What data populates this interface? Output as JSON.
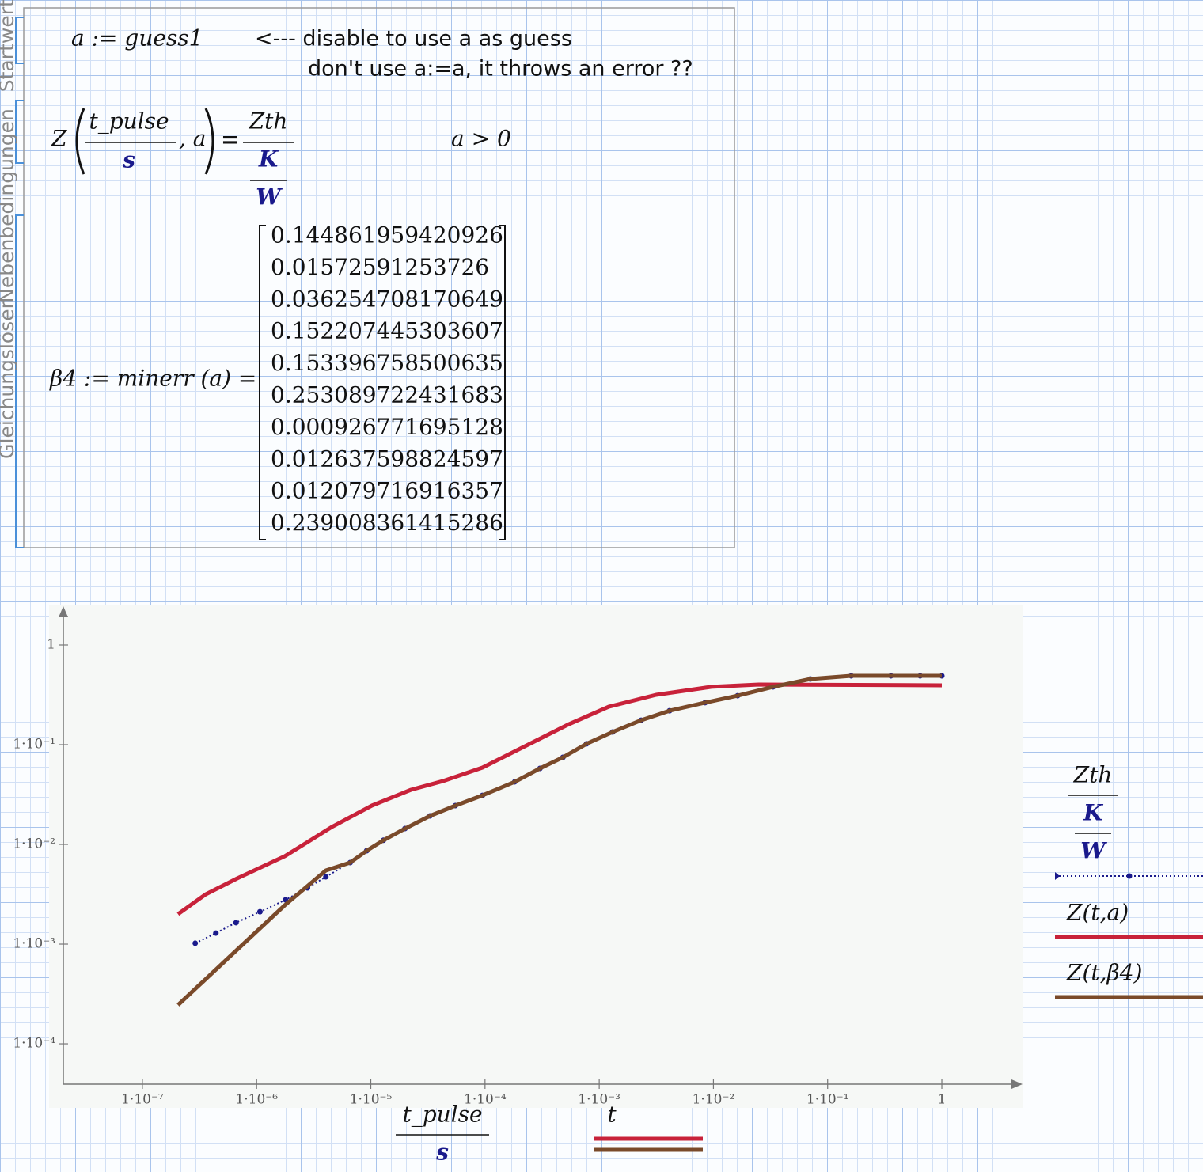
{
  "solve_block": {
    "labels": [
      "Startwerte",
      "Nebenbedingungen",
      "Gleichungslöser"
    ],
    "guess": "a := guess1",
    "comment": [
      "<--- disable to use a as guess",
      "don't use a:=a, it throws an error ??"
    ],
    "equation": {
      "function": "Z",
      "argument_numerator": "t_pulse",
      "argument_denominator": "s",
      "parameter": ", a",
      "equals": "=",
      "rhs_numerator": "Zth",
      "rhs_unit_numerator": "K",
      "rhs_unit_denominator": "W"
    },
    "constraint": "a > 0",
    "result": {
      "lhs": "β4 := minerr (a) =",
      "values": [
        0.144861959420926,
        0.01572591253726,
        0.036254708170649,
        0.152207445303607,
        0.153396758500635,
        0.253089722431683,
        0.000926771695128,
        0.012637598824597,
        0.012079716916357,
        0.239008361415286
      ]
    }
  },
  "chart_data": {
    "type": "line",
    "xscale": "log",
    "yscale": "log",
    "xlim": [
      2.03e-08,
      4.93
    ],
    "ylim": [
      3.94e-05,
      2.36
    ],
    "xticks": [
      {
        "value": 1e-07,
        "label": "1·10⁻⁷"
      },
      {
        "value": 1e-06,
        "label": "1·10⁻⁶"
      },
      {
        "value": 1e-05,
        "label": "1·10⁻⁵"
      },
      {
        "value": 0.0001,
        "label": "1·10⁻⁴"
      },
      {
        "value": 0.001,
        "label": "1·10⁻³"
      },
      {
        "value": 0.01,
        "label": "1·10⁻²"
      },
      {
        "value": 0.1,
        "label": "1·10⁻¹"
      },
      1
    ],
    "yticks": [
      {
        "value": 0.0001,
        "label": "1·10⁻⁴"
      },
      {
        "value": 0.001,
        "label": "1·10⁻³"
      },
      {
        "value": 0.01,
        "label": "1·10⁻²"
      },
      {
        "value": 0.1,
        "label": "1·10⁻¹"
      },
      1
    ],
    "xlabel": {
      "numerator": "t_pulse",
      "denominator": "s"
    },
    "xlabel2": "t",
    "ylabel": {
      "numerator": "Zth",
      "unit_numerator": "K",
      "unit_denominator": "W"
    },
    "series": [
      {
        "color": "#1a1a8c",
        "style": "dotted-markers",
        "x": [
          2.9e-07,
          4.4e-07,
          6.6e-07,
          1.07e-06,
          1.79e-06,
          2.79e-06,
          4.04e-06,
          6.6e-06,
          9.2e-06,
          1.29e-05,
          1.99e-05,
          3.3e-05,
          5.5e-05,
          9.5e-05,
          0.000182,
          0.000303,
          0.000481,
          0.000774,
          0.00131,
          0.00233,
          0.00413,
          0.00845,
          0.0163,
          0.0333,
          0.0705,
          0.161,
          0.358,
          0.646,
          1
        ],
        "values": [
          0.00102,
          0.00129,
          0.00164,
          0.00211,
          0.00278,
          0.00366,
          0.00473,
          0.00657,
          0.00864,
          0.011,
          0.0144,
          0.0193,
          0.0245,
          0.031,
          0.0424,
          0.0578,
          0.0746,
          0.102,
          0.134,
          0.176,
          0.219,
          0.264,
          0.31,
          0.38,
          0.456,
          0.49,
          0.49,
          0.49,
          0.49
        ]
      },
      {
        "name": "Z(t,a)",
        "color": "#c8223a",
        "style": "solid",
        "x": [
          2.05e-07,
          3.58e-07,
          6.76e-07,
          1.76e-06,
          4.58e-06,
          1.02e-05,
          2.25e-05,
          4.27e-05,
          9.5e-05,
          0.00021,
          0.000546,
          0.00121,
          0.00315,
          0.0096,
          0.025,
          1
        ],
        "values": [
          0.002,
          0.00316,
          0.00456,
          0.0076,
          0.015,
          0.0245,
          0.0353,
          0.0431,
          0.0589,
          0.093,
          0.161,
          0.24,
          0.316,
          0.38,
          0.401,
          0.394
        ]
      },
      {
        "name": "Z(t,β4)",
        "color": "#7a4a2a",
        "style": "solid",
        "x": [
          2.05e-07,
          6.76e-07,
          1.76e-06,
          4.04e-06,
          6.6e-06,
          9.2e-06,
          1.29e-05,
          1.99e-05,
          3.3e-05,
          5.5e-05,
          9.5e-05,
          0.000182,
          0.000303,
          0.000481,
          0.000774,
          0.00131,
          0.00233,
          0.00413,
          0.00845,
          0.0163,
          0.0333,
          0.0705,
          0.161,
          0.358,
          0.646,
          1
        ],
        "values": [
          0.000245,
          0.00088,
          0.00245,
          0.00547,
          0.00657,
          0.00864,
          0.011,
          0.0144,
          0.0193,
          0.0245,
          0.031,
          0.0424,
          0.0578,
          0.0746,
          0.102,
          0.134,
          0.176,
          0.219,
          0.264,
          0.31,
          0.38,
          0.456,
          0.49,
          0.49,
          0.49,
          0.49
        ]
      }
    ]
  }
}
